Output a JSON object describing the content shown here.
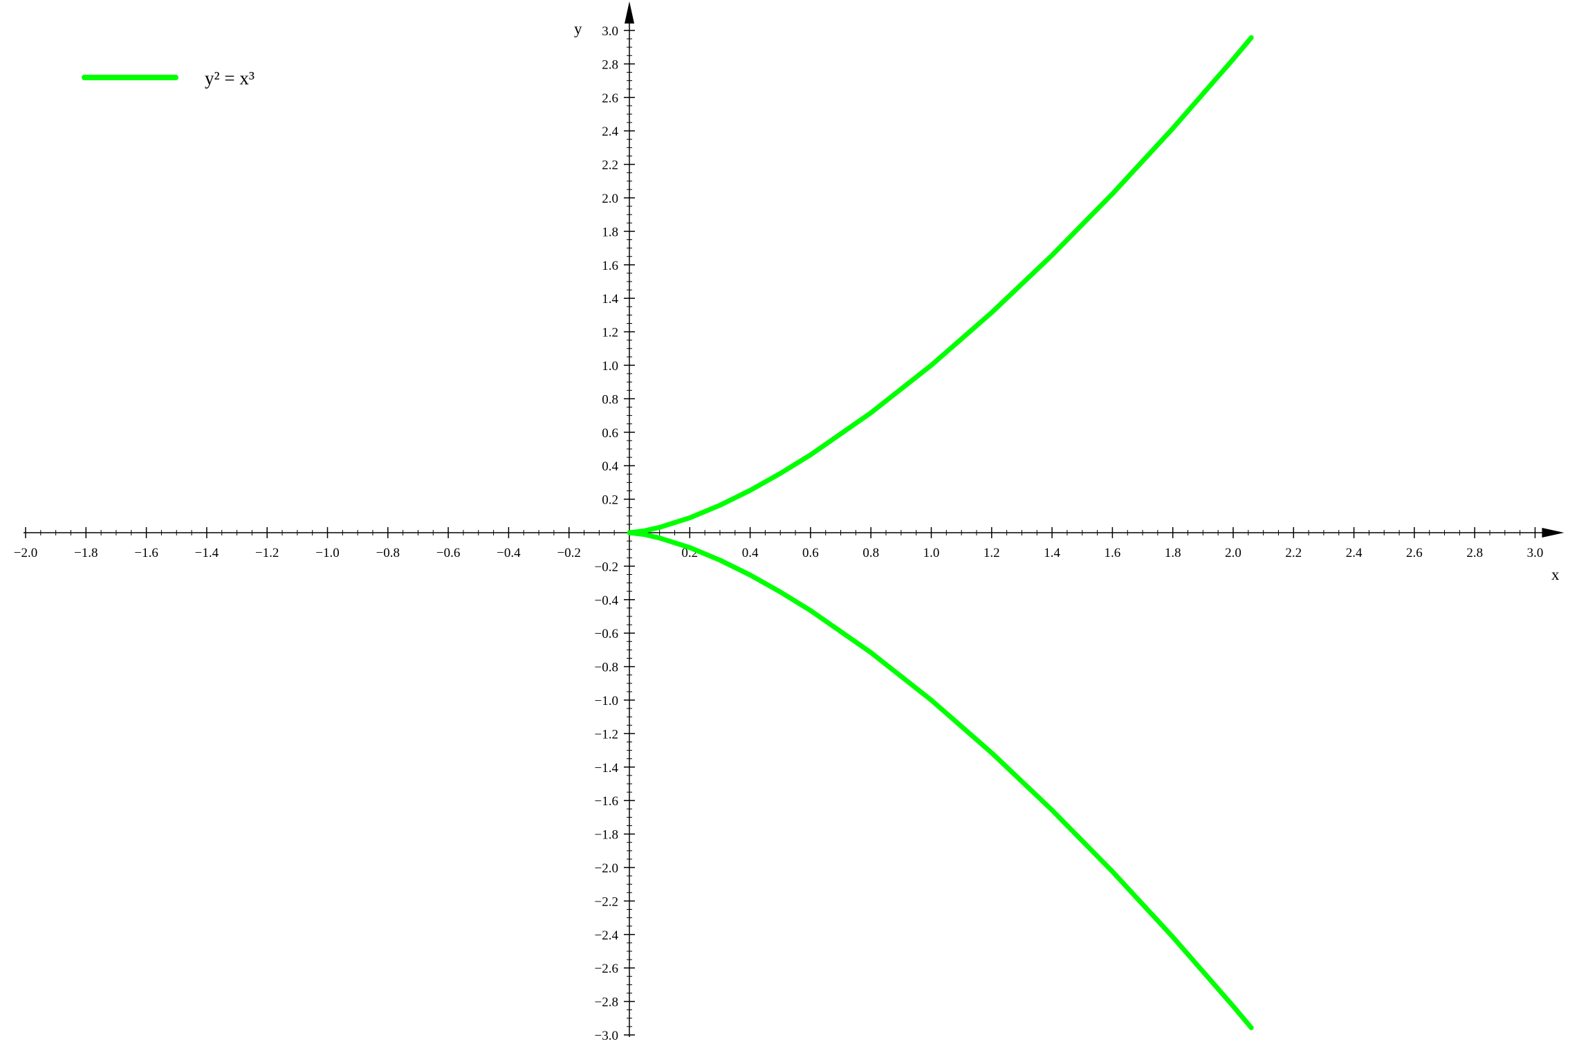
{
  "chart_data": {
    "type": "line",
    "title": "",
    "xlabel": "x",
    "ylabel": "y",
    "xlim": [
      -2.0,
      3.0
    ],
    "ylim": [
      -3.0,
      3.0
    ],
    "xticks": [
      -2.0,
      -1.8,
      -1.6,
      -1.4,
      -1.2,
      -1.0,
      -0.8,
      -0.6,
      -0.4,
      -0.2,
      0.2,
      0.4,
      0.6,
      0.8,
      1.0,
      1.2,
      1.4,
      1.6,
      1.8,
      2.0,
      2.2,
      2.4,
      2.6,
      2.8,
      3.0
    ],
    "yticks": [
      -3.0,
      -2.8,
      -2.6,
      -2.4,
      -2.2,
      -2.0,
      -1.8,
      -1.6,
      -1.4,
      -1.2,
      -1.0,
      -0.8,
      -0.6,
      -0.4,
      -0.2,
      0.2,
      0.4,
      0.6,
      0.8,
      1.0,
      1.2,
      1.4,
      1.6,
      1.8,
      2.0,
      2.2,
      2.4,
      2.6,
      2.8,
      3.0
    ],
    "grid": false,
    "axes_style": "crossing at origin with arrowheads",
    "legend": {
      "position": "top-left",
      "entries": [
        "y² = x³"
      ]
    },
    "series": [
      {
        "name": "y² = x³",
        "color": "#00ff00",
        "x": [
          0,
          0.05,
          0.1,
          0.2,
          0.3,
          0.4,
          0.5,
          0.6,
          0.8,
          1.0,
          1.2,
          1.4,
          1.6,
          1.8,
          2.0,
          2.06
        ],
        "y_upper": [
          0,
          0.011,
          0.032,
          0.089,
          0.164,
          0.253,
          0.354,
          0.465,
          0.716,
          1.0,
          1.315,
          1.657,
          2.024,
          2.415,
          2.828,
          2.957
        ],
        "y_lower": [
          0,
          -0.011,
          -0.032,
          -0.089,
          -0.164,
          -0.253,
          -0.354,
          -0.465,
          -0.716,
          -1.0,
          -1.315,
          -1.657,
          -2.024,
          -2.415,
          -2.828,
          -2.957
        ]
      }
    ]
  }
}
